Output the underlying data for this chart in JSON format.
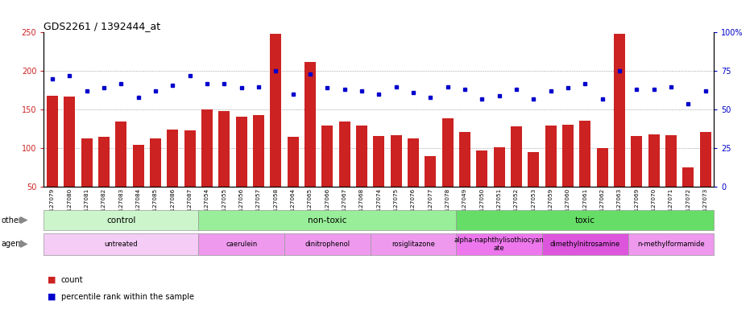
{
  "title": "GDS2261 / 1392444_at",
  "samples": [
    "GSM127079",
    "GSM127080",
    "GSM127081",
    "GSM127082",
    "GSM127083",
    "GSM127084",
    "GSM127085",
    "GSM127086",
    "GSM127087",
    "GSM127054",
    "GSM127055",
    "GSM127056",
    "GSM127057",
    "GSM127058",
    "GSM127064",
    "GSM127065",
    "GSM127066",
    "GSM127067",
    "GSM127068",
    "GSM127074",
    "GSM127075",
    "GSM127076",
    "GSM127077",
    "GSM127078",
    "GSM127049",
    "GSM127050",
    "GSM127051",
    "GSM127052",
    "GSM127053",
    "GSM127059",
    "GSM127060",
    "GSM127061",
    "GSM127062",
    "GSM127063",
    "GSM127069",
    "GSM127070",
    "GSM127071",
    "GSM127072",
    "GSM127073"
  ],
  "counts": [
    168,
    167,
    113,
    115,
    135,
    104,
    113,
    124,
    123,
    150,
    148,
    141,
    143,
    248,
    115,
    212,
    130,
    135,
    130,
    116,
    117,
    113,
    90,
    139,
    121,
    97,
    101,
    128,
    95,
    129,
    131,
    136,
    100,
    248,
    116,
    118,
    117,
    75,
    121
  ],
  "percentile_ranks": [
    70,
    72,
    62,
    64,
    67,
    58,
    62,
    66,
    72,
    67,
    67,
    64,
    65,
    75,
    60,
    73,
    64,
    63,
    62,
    60,
    65,
    61,
    58,
    65,
    63,
    57,
    59,
    63,
    57,
    62,
    64,
    67,
    57,
    75,
    63,
    63,
    65,
    54,
    62
  ],
  "bar_color": "#cc2222",
  "dot_color": "#0000cc",
  "ylim_left": [
    50,
    250
  ],
  "ylim_right": [
    0,
    100
  ],
  "yticks_left": [
    50,
    100,
    150,
    200,
    250
  ],
  "yticks_right": [
    0,
    25,
    50,
    75,
    100
  ],
  "group_spans": [
    {
      "label": "control",
      "start": 0,
      "end": 9,
      "color": "#ccf5cc"
    },
    {
      "label": "non-toxic",
      "start": 9,
      "end": 24,
      "color": "#99ee99"
    },
    {
      "label": "toxic",
      "start": 24,
      "end": 39,
      "color": "#66dd66"
    }
  ],
  "agent_spans": [
    {
      "label": "untreated",
      "start": 0,
      "end": 9,
      "color": "#f5ccf5"
    },
    {
      "label": "caerulein",
      "start": 9,
      "end": 14,
      "color": "#ee99ee"
    },
    {
      "label": "dinitrophenol",
      "start": 14,
      "end": 19,
      "color": "#ee99ee"
    },
    {
      "label": "rosiglitazone",
      "start": 19,
      "end": 24,
      "color": "#ee99ee"
    },
    {
      "label": "alpha-naphthylisothiocyan\nate",
      "start": 24,
      "end": 29,
      "color": "#ee77ee"
    },
    {
      "label": "dimethylnitrosamine",
      "start": 29,
      "end": 34,
      "color": "#dd55dd"
    },
    {
      "label": "n-methylformamide",
      "start": 34,
      "end": 39,
      "color": "#ee99ee"
    }
  ],
  "hlines": [
    100,
    150,
    200
  ],
  "hline_color": "#888888",
  "bg_color": "#ffffff",
  "legend_count_label": "count",
  "legend_pct_label": "percentile rank within the sample"
}
